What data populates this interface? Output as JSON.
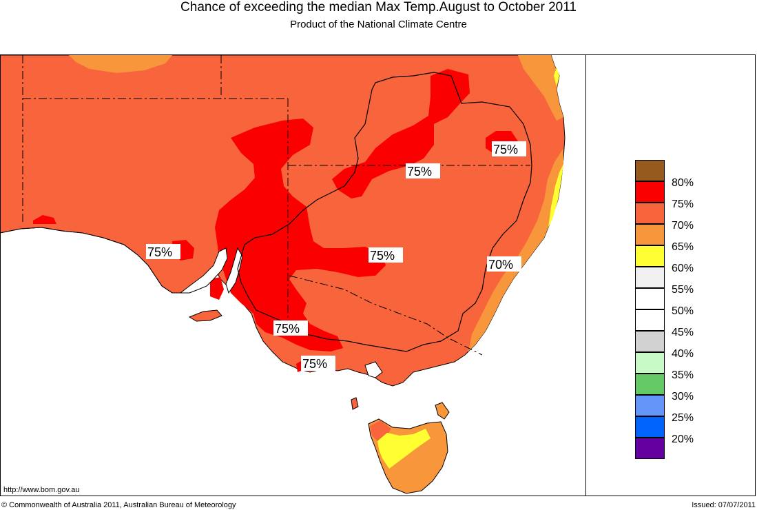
{
  "header": {
    "title": "Chance of exceeding the median Max Temp.August to October 2011",
    "subtitle": "Product of the National Climate Centre"
  },
  "map": {
    "labels": [
      "75%",
      "75%",
      "75%",
      "75%",
      "75%",
      "75%",
      "70%"
    ],
    "colors": {
      "ocean": "#ffffff",
      "p65": "#f8963c",
      "p70": "#f8643c",
      "p75": "#fa0000",
      "p60": "#ffff32",
      "land_border": "#000000"
    }
  },
  "legend": {
    "items": [
      {
        "label": "",
        "color": "#965a1e"
      },
      {
        "label": "80%",
        "color": "#fa0000"
      },
      {
        "label": "75%",
        "color": "#f8643c"
      },
      {
        "label": "70%",
        "color": "#f8963c"
      },
      {
        "label": "65%",
        "color": "#ffff32"
      },
      {
        "label": "60%",
        "color": "#f0f0f0"
      },
      {
        "label": "55%",
        "color": "#ffffff"
      },
      {
        "label": "50%",
        "color": "#ffffff"
      },
      {
        "label": "45%",
        "color": "#d2d2d2"
      },
      {
        "label": "40%",
        "color": "#c8fac8"
      },
      {
        "label": "35%",
        "color": "#64c864"
      },
      {
        "label": "30%",
        "color": "#6496fa"
      },
      {
        "label": "25%",
        "color": "#0064fa"
      },
      {
        "label": "20%",
        "color": "#6400a0"
      }
    ]
  },
  "footer": {
    "url": "http://www.bom.gov.au",
    "copyright": "© Commonwealth of Australia 2011, Australian Bureau of Meteorology",
    "issued": "Issued: 07/07/2011"
  }
}
